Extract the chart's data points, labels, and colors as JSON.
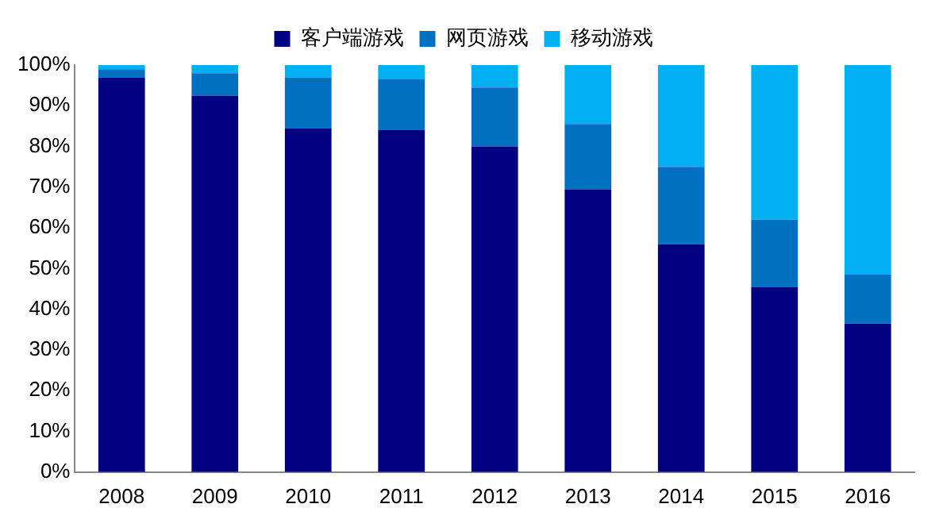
{
  "chart_data": {
    "type": "bar",
    "stacked": true,
    "legend": "top",
    "grid": false,
    "categories": [
      "2008",
      "2009",
      "2010",
      "2011",
      "2012",
      "2013",
      "2014",
      "2015",
      "2016"
    ],
    "series": [
      {
        "name": "客户端游戏",
        "color": "#000080",
        "values": [
          97,
          92.5,
          84.5,
          84,
          80,
          69.5,
          56,
          45.5,
          36.5
        ]
      },
      {
        "name": "网页游戏",
        "color": "#0070c0",
        "values": [
          2,
          5.5,
          12.5,
          12.5,
          14.5,
          16,
          19,
          16.5,
          12
        ]
      },
      {
        "name": "移动游戏",
        "color": "#00b0f0",
        "values": [
          1,
          2,
          3,
          3.5,
          5.5,
          14.5,
          25,
          38,
          51.5
        ]
      }
    ],
    "ylim": [
      0,
      100
    ],
    "yticks": [
      {
        "value": 0,
        "label": "0%"
      },
      {
        "value": 10,
        "label": "10%"
      },
      {
        "value": 20,
        "label": "20%"
      },
      {
        "value": 30,
        "label": "30%"
      },
      {
        "value": 40,
        "label": "40%"
      },
      {
        "value": 50,
        "label": "50%"
      },
      {
        "value": 60,
        "label": "60%"
      },
      {
        "value": 70,
        "label": "70%"
      },
      {
        "value": 80,
        "label": "80%"
      },
      {
        "value": 90,
        "label": "90%"
      },
      {
        "value": 100,
        "label": "100%"
      }
    ]
  }
}
